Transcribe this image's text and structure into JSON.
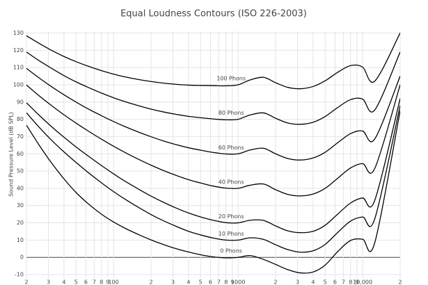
{
  "chart_data": {
    "type": "line",
    "title": "Equal Loudness Contours (ISO 226-2003)",
    "y_label": "Sound Pressure Level (dB SPL)",
    "log_x": true,
    "grid": true,
    "x": [
      20,
      25,
      31.5,
      40,
      50,
      63,
      80,
      100,
      125,
      160,
      200,
      250,
      315,
      400,
      500,
      630,
      800,
      1000,
      1250,
      1600,
      2000,
      2500,
      3150,
      4000,
      5000,
      6300,
      8000,
      10000,
      12500,
      20000
    ],
    "xlim": [
      20,
      20000
    ],
    "xticks": [
      {
        "value": 20,
        "label": "2"
      },
      {
        "value": 30,
        "label": "3"
      },
      {
        "value": 40,
        "label": "4"
      },
      {
        "value": 50,
        "label": "5"
      },
      {
        "value": 60,
        "label": "6"
      },
      {
        "value": 70,
        "label": "7"
      },
      {
        "value": 80,
        "label": "8"
      },
      {
        "value": 90,
        "label": "9"
      },
      100,
      {
        "value": 200,
        "label": "2"
      },
      {
        "value": 300,
        "label": "3"
      },
      {
        "value": 400,
        "label": "4"
      },
      {
        "value": 500,
        "label": "5"
      },
      {
        "value": 600,
        "label": "6"
      },
      {
        "value": 700,
        "label": "7"
      },
      {
        "value": 800,
        "label": "8"
      },
      {
        "value": 900,
        "label": "9"
      },
      1000,
      {
        "value": 2000,
        "label": "2"
      },
      {
        "value": 3000,
        "label": "3"
      },
      {
        "value": 4000,
        "label": "4"
      },
      {
        "value": 5000,
        "label": "5"
      },
      {
        "value": 6000,
        "label": "6"
      },
      {
        "value": 7000,
        "label": "7"
      },
      {
        "value": 8000,
        "label": "8"
      },
      {
        "value": 9000,
        "label": "9"
      },
      {
        "value": 10000,
        "label": "10,000"
      },
      {
        "value": 20000,
        "label": "2"
      }
    ],
    "ylim": [
      -12,
      131
    ],
    "yticks": [
      -10,
      0,
      10,
      20,
      30,
      40,
      50,
      60,
      70,
      80,
      90,
      100,
      110,
      120,
      130
    ],
    "series": [
      {
        "name": "0 Phons",
        "color": "#000000",
        "values": [
          76.6,
          65.6,
          55.1,
          45.5,
          37.6,
          30.9,
          25.0,
          20.5,
          16.7,
          13.1,
          10.1,
          7.5,
          5.1,
          3.1,
          1.5,
          0.3,
          -0.3,
          0,
          1.0,
          -1.2,
          -4.1,
          -7.1,
          -9.0,
          -8.5,
          -4.5,
          3.3,
          9.8,
          10.5,
          8.4,
          85
        ]
      },
      {
        "name": "10 Phons",
        "color": "#000000",
        "values": [
          83.8,
          75.8,
          68.2,
          61.1,
          55.0,
          49.0,
          43.2,
          38.1,
          33.5,
          28.8,
          24.8,
          21.3,
          18.1,
          15.1,
          13.0,
          11.2,
          10.0,
          10.0,
          11.3,
          10.4,
          7.3,
          4.5,
          3.0,
          3.8,
          7.5,
          14.4,
          21.0,
          23.4,
          22.3,
          88
        ]
      },
      {
        "name": "20 Phons",
        "color": "#000000",
        "values": [
          89.6,
          82.7,
          76.0,
          69.6,
          64.0,
          58.6,
          53.2,
          48.4,
          43.9,
          39.4,
          35.5,
          32.0,
          28.7,
          25.7,
          23.4,
          21.5,
          20.1,
          20.0,
          21.5,
          21.4,
          18.2,
          15.4,
          14.3,
          15.1,
          18.6,
          25.0,
          31.5,
          34.4,
          33.0,
          92
        ]
      },
      {
        "name": "40 Phons",
        "color": "#000000",
        "values": [
          99.9,
          93.9,
          88.2,
          82.6,
          77.8,
          73.1,
          68.5,
          64.4,
          60.6,
          56.7,
          53.4,
          50.4,
          47.6,
          45.0,
          43.1,
          41.3,
          40.1,
          40.0,
          41.8,
          42.5,
          39.2,
          36.5,
          35.6,
          36.7,
          40.0,
          45.8,
          51.8,
          54.3,
          51.5,
          100
        ]
      },
      {
        "name": "60 Phons",
        "color": "#000000",
        "values": [
          109.5,
          104.2,
          99.1,
          94.2,
          90.0,
          85.9,
          82.1,
          78.7,
          75.6,
          72.5,
          69.9,
          67.5,
          65.4,
          63.5,
          62.1,
          60.8,
          59.9,
          60.0,
          62.2,
          63.2,
          60.0,
          57.3,
          56.4,
          57.6,
          60.9,
          66.4,
          71.7,
          73.2,
          68.6,
          105
        ]
      },
      {
        "name": "80 Phons",
        "color": "#000000",
        "values": [
          119.0,
          114.2,
          109.7,
          105.3,
          101.7,
          98.4,
          95.2,
          92.5,
          90.1,
          87.8,
          85.9,
          84.3,
          82.9,
          81.7,
          80.9,
          80.2,
          79.7,
          80.0,
          82.5,
          83.7,
          80.6,
          77.9,
          77.1,
          78.3,
          81.6,
          86.8,
          91.4,
          91.7,
          85.4,
          119
        ]
      },
      {
        "name": "100 Phons",
        "color": "#000000",
        "values": [
          128.4,
          124.2,
          120.1,
          116.4,
          113.4,
          110.7,
          108.2,
          106.2,
          104.5,
          103.0,
          101.9,
          101.0,
          100.3,
          99.8,
          99.6,
          99.5,
          99.4,
          100.0,
          102.8,
          104.3,
          101.2,
          98.5,
          97.7,
          99.0,
          102.3,
          107.2,
          111.1,
          110.2,
          102.1,
          130
        ]
      }
    ]
  }
}
